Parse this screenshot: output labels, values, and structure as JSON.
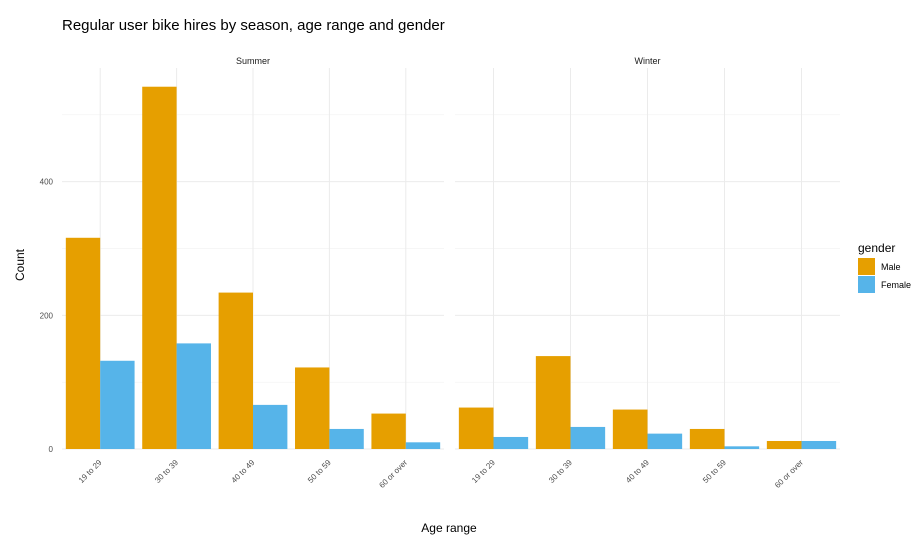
{
  "chart_data": {
    "type": "bar",
    "title": "Regular user bike hires by season, age range and gender",
    "xlabel": "Age range",
    "ylabel": "Count",
    "ylim": [
      0,
      570
    ],
    "yticks": [
      0,
      200,
      400
    ],
    "grid": true,
    "legend": {
      "title": "gender",
      "position": "right",
      "entries": [
        {
          "name": "Male",
          "color": "#E69F00"
        },
        {
          "name": "Female",
          "color": "#56B4E9"
        }
      ]
    },
    "categories": [
      "19 to 29",
      "30 to 39",
      "40 to 49",
      "50 to 59",
      "60 or over"
    ],
    "panels": [
      {
        "name": "Summer",
        "series": [
          {
            "name": "Male",
            "values": [
              316,
              542,
              234,
              122,
              53
            ]
          },
          {
            "name": "Female",
            "values": [
              132,
              158,
              66,
              30,
              10
            ]
          }
        ]
      },
      {
        "name": "Winter",
        "series": [
          {
            "name": "Male",
            "values": [
              62,
              139,
              59,
              30,
              12
            ]
          },
          {
            "name": "Female",
            "values": [
              18,
              33,
              23,
              4,
              12
            ]
          }
        ]
      }
    ]
  }
}
